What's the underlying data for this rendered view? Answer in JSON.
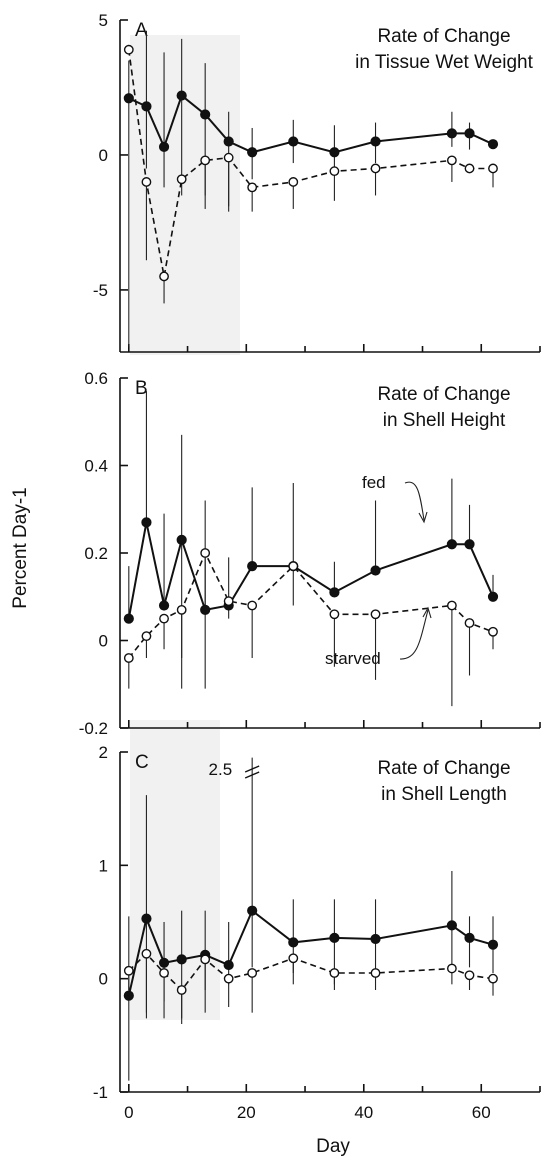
{
  "figure": {
    "ylabel": "Percent Day-1",
    "xlabel": "Day",
    "xticks": [
      "0",
      "20",
      "40",
      "60"
    ],
    "series_labels": {
      "fed": "fed",
      "starved": "starved"
    },
    "break_label": "2.5"
  },
  "chart_data": [
    {
      "type": "line",
      "panel": "A",
      "title_line1": "Rate of Change",
      "title_line2": "in Tissue Wet Weight",
      "ylim": [
        -7.3,
        5
      ],
      "xlim": [
        -1.5,
        70
      ],
      "yticks": [
        5,
        0,
        -5
      ],
      "yticklabels": [
        "5",
        "0",
        "-5"
      ],
      "xticks": [
        0,
        20,
        40,
        60
      ],
      "series": [
        {
          "name": "fed",
          "x": [
            0,
            3,
            6,
            9,
            13,
            17,
            21,
            28,
            35,
            42,
            55,
            58,
            62
          ],
          "y": [
            2.1,
            1.8,
            0.3,
            2.2,
            1.5,
            0.5,
            0.1,
            0.5,
            0.1,
            0.5,
            0.8,
            0.8,
            0.4
          ],
          "err": [
            [
              -7.1,
              3.5
            ],
            [
              -0.5,
              4.6
            ],
            [
              -1.2,
              3.8
            ],
            [
              -0.8,
              4.3
            ],
            [
              -1.5,
              3.4
            ],
            [
              -1.9,
              1.6
            ],
            [
              -0.9,
              1.0
            ],
            [
              -0.3,
              1.3
            ],
            [
              -0.6,
              1.1
            ],
            [
              -0.3,
              1.2
            ],
            [
              0.3,
              1.6
            ],
            [
              0.2,
              1.2
            ],
            [
              0.4,
              0.4
            ]
          ]
        },
        {
          "name": "starved",
          "x": [
            0,
            3,
            6,
            9,
            13,
            17,
            21,
            28,
            35,
            42,
            55,
            58,
            62
          ],
          "y": [
            3.9,
            -1.0,
            -4.5,
            -0.9,
            -0.2,
            -0.1,
            -1.2,
            -1.0,
            -0.6,
            -0.5,
            -0.2,
            -0.5,
            -0.5
          ],
          "err": [
            [
              3.9,
              3.9
            ],
            [
              -3.9,
              -1.0
            ],
            [
              -5.5,
              -4.5
            ],
            [
              -1.5,
              -0.9
            ],
            [
              -2.0,
              -0.2
            ],
            [
              -2.1,
              -0.1
            ],
            [
              -2.1,
              -1.2
            ],
            [
              -2.0,
              -1.0
            ],
            [
              -1.7,
              -0.6
            ],
            [
              -1.5,
              -0.5
            ],
            [
              -1.0,
              -0.2
            ],
            [
              -0.5,
              -0.5
            ],
            [
              -1.2,
              -0.5
            ]
          ]
        }
      ]
    },
    {
      "type": "line",
      "panel": "B",
      "title_line1": "Rate of Change",
      "title_line2": "in Shell Height",
      "ylim": [
        -0.2,
        0.6
      ],
      "xlim": [
        -1.5,
        70
      ],
      "yticks": [
        0.6,
        0.4,
        0.2,
        0,
        -0.2
      ],
      "yticklabels": [
        "0.6",
        "0.4",
        "0.2",
        "0",
        "-0.2"
      ],
      "xticks": [
        0,
        20,
        40,
        60
      ],
      "series": [
        {
          "name": "fed",
          "x": [
            0,
            3,
            6,
            9,
            13,
            17,
            21,
            28,
            35,
            42,
            55,
            58,
            62
          ],
          "y": [
            0.05,
            0.27,
            0.08,
            0.23,
            0.07,
            0.08,
            0.17,
            0.17,
            0.11,
            0.16,
            0.22,
            0.22,
            0.1
          ],
          "err": [
            [
              0.05,
              0.17
            ],
            [
              0.27,
              0.57
            ],
            [
              0.08,
              0.29
            ],
            [
              -0.11,
              0.47
            ],
            [
              0.07,
              0.32
            ],
            [
              0.08,
              0.19
            ],
            [
              0.17,
              0.35
            ],
            [
              0.17,
              0.36
            ],
            [
              0.11,
              0.18
            ],
            [
              0.16,
              0.32
            ],
            [
              0.22,
              0.37
            ],
            [
              0.22,
              0.31
            ],
            [
              0.1,
              0.15
            ]
          ]
        },
        {
          "name": "starved",
          "x": [
            0,
            3,
            6,
            9,
            13,
            17,
            21,
            28,
            35,
            42,
            55,
            58,
            62
          ],
          "y": [
            -0.04,
            0.01,
            0.05,
            0.07,
            0.2,
            0.09,
            0.08,
            0.17,
            0.06,
            0.06,
            0.08,
            0.04,
            0.02
          ],
          "err": [
            [
              -0.11,
              -0.04
            ],
            [
              -0.04,
              0.01
            ],
            [
              -0.02,
              0.05
            ],
            [
              -0.04,
              0.07
            ],
            [
              -0.11,
              0.2
            ],
            [
              0.05,
              0.09
            ],
            [
              -0.04,
              0.08
            ],
            [
              0.08,
              0.17
            ],
            [
              -0.06,
              0.06
            ],
            [
              -0.09,
              0.06
            ],
            [
              -0.15,
              0.08
            ],
            [
              -0.08,
              0.04
            ],
            [
              -0.02,
              0.02
            ]
          ]
        }
      ]
    },
    {
      "type": "line",
      "panel": "C",
      "title_line1": "Rate of Change",
      "title_line2": "in Shell Length",
      "ylim": [
        -1,
        2
      ],
      "xlim": [
        -1.5,
        70
      ],
      "yticks": [
        2,
        1,
        0,
        -1
      ],
      "yticklabels": [
        "2",
        "1",
        "0",
        "-1"
      ],
      "xticks": [
        0,
        20,
        40,
        60
      ],
      "series": [
        {
          "name": "fed",
          "x": [
            0,
            3,
            6,
            9,
            13,
            17,
            21,
            28,
            35,
            42,
            55,
            58,
            62
          ],
          "y": [
            -0.15,
            0.53,
            0.14,
            0.17,
            0.21,
            0.12,
            0.6,
            0.32,
            0.36,
            0.35,
            0.47,
            0.36,
            0.3
          ],
          "err": [
            [
              -0.9,
              0.55
            ],
            [
              -0.35,
              1.62
            ],
            [
              -0.35,
              0.5
            ],
            [
              -0.35,
              0.6
            ],
            [
              -0.1,
              0.6
            ],
            [
              -0.05,
              0.5
            ],
            [
              0.1,
              1.95
            ],
            [
              -0.05,
              0.7
            ],
            [
              -0.05,
              0.7
            ],
            [
              0.0,
              0.7
            ],
            [
              0.1,
              0.95
            ],
            [
              0.1,
              0.55
            ],
            [
              0.05,
              0.55
            ]
          ]
        },
        {
          "name": "starved",
          "x": [
            0,
            3,
            6,
            9,
            13,
            17,
            21,
            28,
            35,
            42,
            55,
            58,
            62
          ],
          "y": [
            0.07,
            0.22,
            0.05,
            -0.1,
            0.17,
            0.0,
            0.05,
            0.18,
            0.05,
            0.05,
            0.09,
            0.03,
            0.0
          ],
          "err": [
            [
              -0.1,
              0.07
            ],
            [
              -0.3,
              0.22
            ],
            [
              -0.2,
              0.05
            ],
            [
              -0.4,
              -0.1
            ],
            [
              -0.3,
              0.17
            ],
            [
              -0.25,
              0.0
            ],
            [
              -0.3,
              0.05
            ],
            [
              0.05,
              0.18
            ],
            [
              -0.1,
              0.05
            ],
            [
              -0.1,
              0.05
            ],
            [
              -0.05,
              0.09
            ],
            [
              -0.1,
              0.03
            ],
            [
              -0.15,
              0.0
            ]
          ]
        }
      ]
    }
  ]
}
